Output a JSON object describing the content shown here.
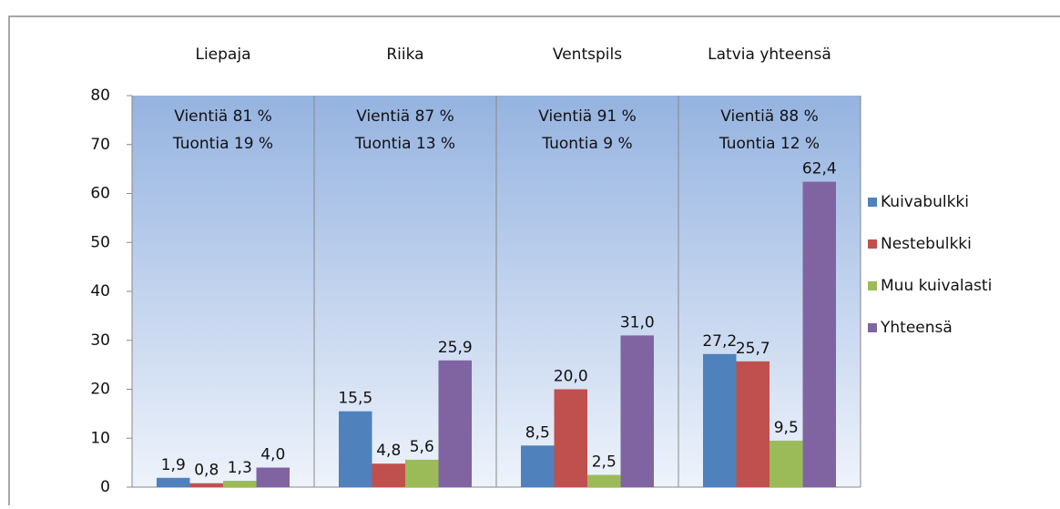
{
  "chart_data": {
    "type": "bar",
    "categories": [
      "Liepaja",
      "Riika",
      "Ventspils",
      "Latvia yhteensä"
    ],
    "annotations": [
      [
        "Vientiä 81 %",
        "Tuontia 19 %"
      ],
      [
        "Vientiä 87 %",
        "Tuontia 13 %"
      ],
      [
        "Vientiä 91 %",
        "Tuontia 9 %"
      ],
      [
        "Vientiä 88 %",
        "Tuontia 12 %"
      ]
    ],
    "series": [
      {
        "name": "Kuivabulkki",
        "color": "#4f81bd",
        "values": [
          1.9,
          15.5,
          8.5,
          27.2
        ],
        "value_labels": [
          "1,9",
          "15,5",
          "8,5",
          "27,2"
        ]
      },
      {
        "name": "Nestebulkki",
        "color": "#c0504d",
        "values": [
          0.8,
          4.8,
          20.0,
          25.7
        ],
        "value_labels": [
          "0,8",
          "4,8",
          "20,0",
          "25,7"
        ]
      },
      {
        "name": "Muu kuivalasti",
        "color": "#9bbb59",
        "values": [
          1.3,
          5.6,
          2.5,
          9.5
        ],
        "value_labels": [
          "1,3",
          "5,6",
          "2,5",
          "9,5"
        ]
      },
      {
        "name": "Yhteensä",
        "color": "#8064a2",
        "values": [
          4.0,
          25.9,
          31.0,
          62.4
        ],
        "value_labels": [
          "4,0",
          "25,9",
          "31,0",
          "62,4"
        ]
      }
    ],
    "ylim": [
      0,
      80
    ],
    "yticks": [
      0,
      10,
      20,
      30,
      40,
      50,
      60,
      70,
      80
    ],
    "legend": "right"
  }
}
